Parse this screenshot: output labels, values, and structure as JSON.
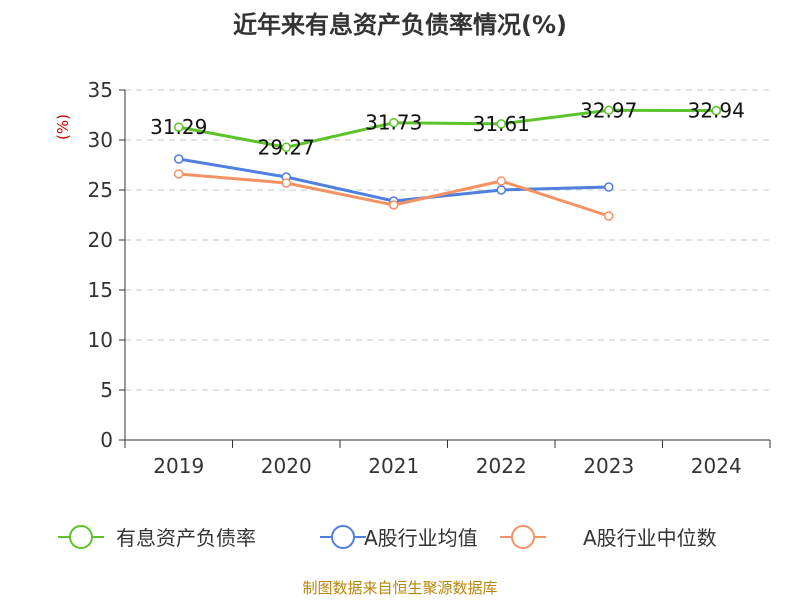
{
  "chart_data": {
    "type": "line",
    "title": "近年来有息资产负债率情况(%)",
    "ylabel": "(%)",
    "xlabel": "",
    "categories": [
      "2019",
      "2020",
      "2021",
      "2022",
      "2023",
      "2024"
    ],
    "ylim": [
      0,
      35
    ],
    "yticks": [
      0,
      5,
      10,
      15,
      20,
      25,
      30,
      35
    ],
    "grid": true,
    "legend_position": "bottom",
    "series": [
      {
        "name": "有息资产负债率",
        "color": "#5cc32a",
        "values": [
          31.29,
          29.27,
          31.73,
          31.61,
          32.97,
          32.94
        ],
        "labels": [
          "31.29",
          "29.27",
          "31.73",
          "31.61",
          "32.97",
          "32.94"
        ]
      },
      {
        "name": "A股行业均值",
        "color": "#4f7fdf",
        "values": [
          28.1,
          26.3,
          23.9,
          25.0,
          25.3,
          null
        ]
      },
      {
        "name": "A股行业中位数",
        "color": "#f59263",
        "values": [
          26.6,
          25.7,
          23.5,
          25.9,
          22.4,
          null
        ]
      }
    ],
    "source": "制图数据来自恒生聚源数据库"
  }
}
